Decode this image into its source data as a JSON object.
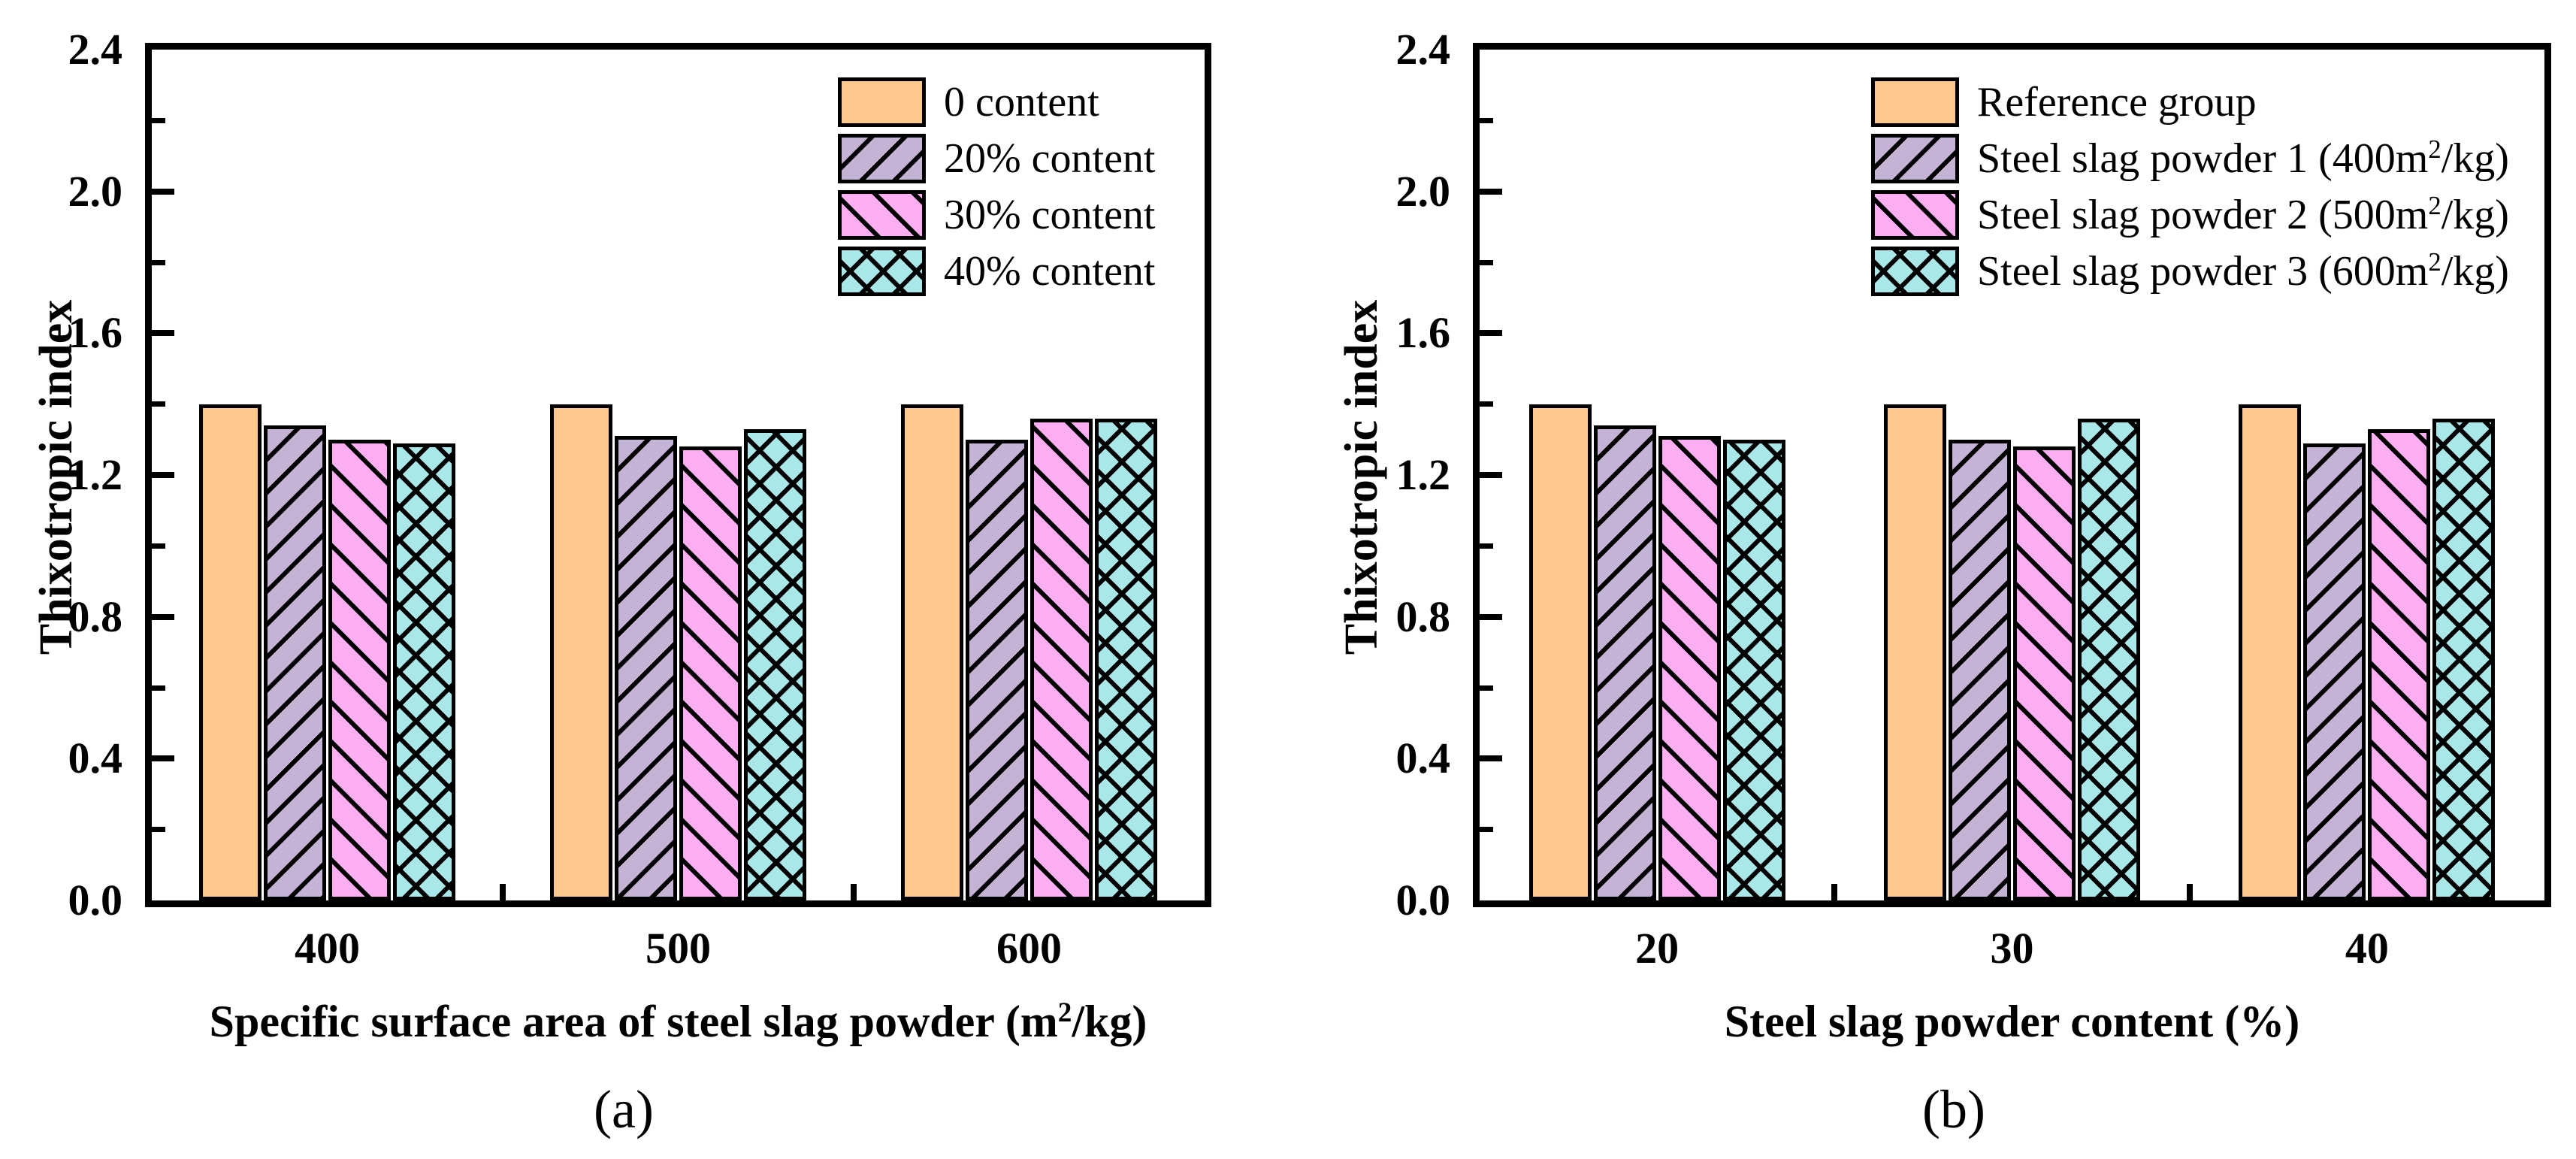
{
  "page": {
    "background": "#ffffff",
    "axis_color": "#000000"
  },
  "chart_data": [
    {
      "type": "bar",
      "panel_label": "(a)",
      "ylabel": "Thixotropic index",
      "xlabel": "Specific surface area of steel slag powder (m²/kg)",
      "categories": [
        "400",
        "500",
        "600"
      ],
      "ylim": [
        0.0,
        2.4
      ],
      "ytick_labels": [
        "0.0",
        "0.4",
        "0.8",
        "1.2",
        "1.6",
        "2.0",
        "2.4"
      ],
      "yminor_step": 0.2,
      "grid": false,
      "legend_position": "upper-right-inside",
      "series": [
        {
          "name": "0 content",
          "color": "#fdc98f",
          "hatch": "none",
          "values": [
            1.4,
            1.4,
            1.4
          ]
        },
        {
          "name": "20% content",
          "color": "#c5b3d6",
          "hatch": "/",
          "values": [
            1.34,
            1.31,
            1.3
          ]
        },
        {
          "name": "30% content",
          "color": "#fbaef1",
          "hatch": "\\",
          "values": [
            1.3,
            1.28,
            1.36
          ]
        },
        {
          "name": "40% content",
          "color": "#a9e7e8",
          "hatch": "x",
          "values": [
            1.29,
            1.33,
            1.36
          ]
        }
      ]
    },
    {
      "type": "bar",
      "panel_label": "(b)",
      "ylabel": "Thixotropic index",
      "xlabel": "Steel slag powder content (%)",
      "categories": [
        "20",
        "30",
        "40"
      ],
      "ylim": [
        0.0,
        2.4
      ],
      "ytick_labels": [
        "0.0",
        "0.4",
        "0.8",
        "1.2",
        "1.6",
        "2.0",
        "2.4"
      ],
      "yminor_step": 0.2,
      "grid": false,
      "legend_position": "upper-right-inside",
      "series": [
        {
          "name": "Reference group",
          "color": "#fdc98f",
          "hatch": "none",
          "values": [
            1.4,
            1.4,
            1.4
          ]
        },
        {
          "name": "Steel slag powder 1 (400m²/kg)",
          "color": "#c5b3d6",
          "hatch": "/",
          "values": [
            1.34,
            1.3,
            1.29
          ]
        },
        {
          "name": "Steel slag powder 2 (500m²/kg)",
          "color": "#fbaef1",
          "hatch": "\\",
          "values": [
            1.31,
            1.28,
            1.33
          ]
        },
        {
          "name": "Steel slag powder 3 (600m²/kg)",
          "color": "#a9e7e8",
          "hatch": "x",
          "values": [
            1.3,
            1.36,
            1.36
          ]
        }
      ]
    }
  ]
}
